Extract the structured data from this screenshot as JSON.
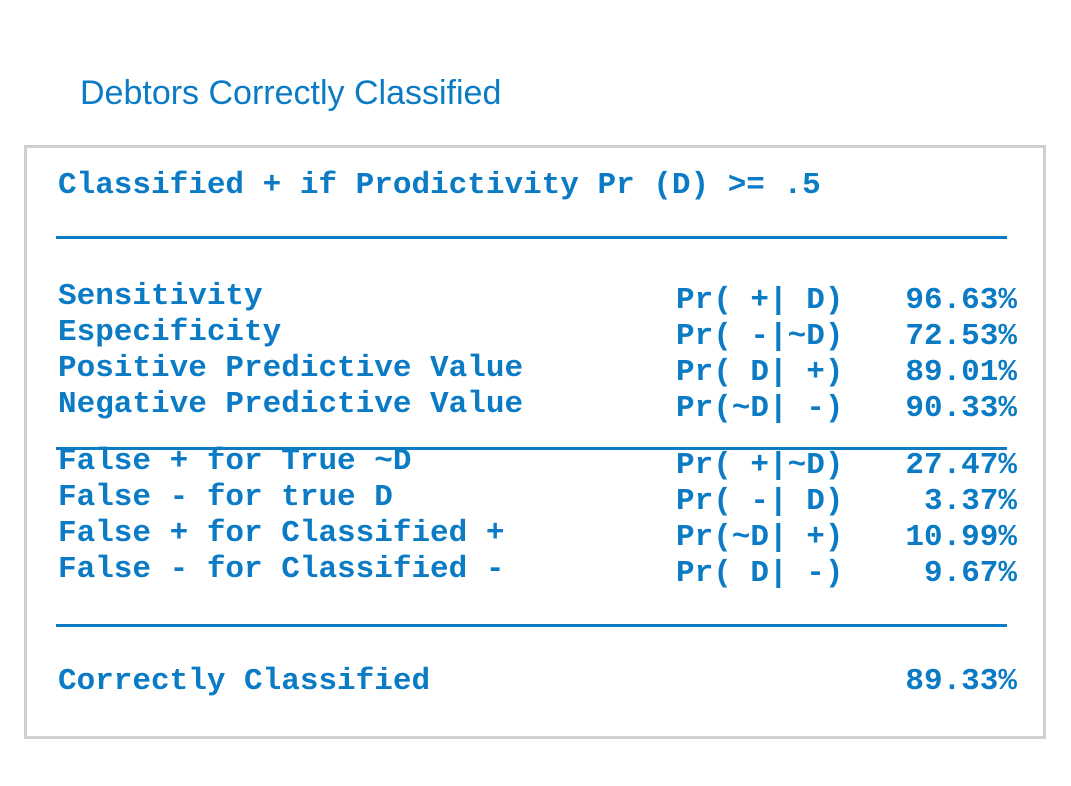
{
  "title": "Debtors Correctly Classified",
  "header": "Classified + if Prodictivity Pr (D) >= .5",
  "block1": [
    {
      "label": "Sensitivity",
      "prob": "Pr( +| D)",
      "value": "96.63%"
    },
    {
      "label": "Especificity",
      "prob": "Pr( -|~D)",
      "value": "72.53%"
    },
    {
      "label": "Positive Predictive Value",
      "prob": "Pr( D| +)",
      "value": "89.01%"
    },
    {
      "label": "Negative Predictive Value",
      "prob": "Pr(~D| -)",
      "value": "90.33%"
    }
  ],
  "block2": [
    {
      "label": "False + for True ~D",
      "prob": "Pr( +|~D)",
      "value": "27.47%"
    },
    {
      "label": "False - for true D",
      "prob": "Pr( -| D)",
      "value": "3.37%"
    },
    {
      "label": "False + for Classified +",
      "prob": "Pr(~D| +)",
      "value": "10.99%"
    },
    {
      "label": "False - for Classified -",
      "prob": "Pr( D| -)",
      "value": "9.67%"
    }
  ],
  "total": {
    "label": "Correctly Classified",
    "value": "89.33%"
  },
  "colors": {
    "text": "#0a7bc4",
    "border": "#cfcfcf"
  }
}
